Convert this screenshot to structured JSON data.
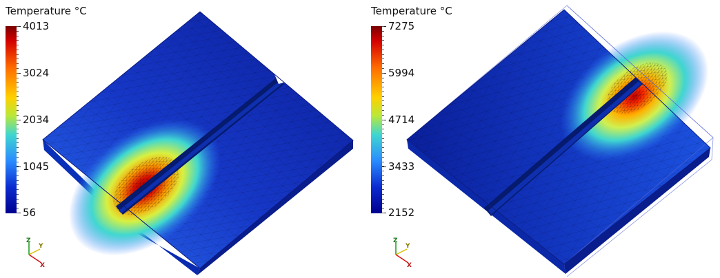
{
  "panels": [
    {
      "colorbar": {
        "title": "Temperature °C",
        "tick_labels": [
          "4013",
          "3024",
          "2034",
          "1045",
          "56"
        ],
        "max": 4013,
        "min": 56
      },
      "axes_labels": {
        "z": "Z",
        "y": "Y",
        "x": "X"
      }
    },
    {
      "colorbar": {
        "title": "Temperature °C",
        "tick_labels": [
          "7275",
          "5994",
          "4714",
          "3433",
          "2152"
        ],
        "max": 7275,
        "min": 2152
      },
      "axes_labels": {
        "z": "Z",
        "y": "Y",
        "x": "X"
      }
    }
  ],
  "colors": {
    "hot": "#b00000",
    "warm": "#ffd000",
    "mid": "#3fd6d0",
    "cool": "#1f4fe0",
    "cold": "#0a1f9a"
  }
}
